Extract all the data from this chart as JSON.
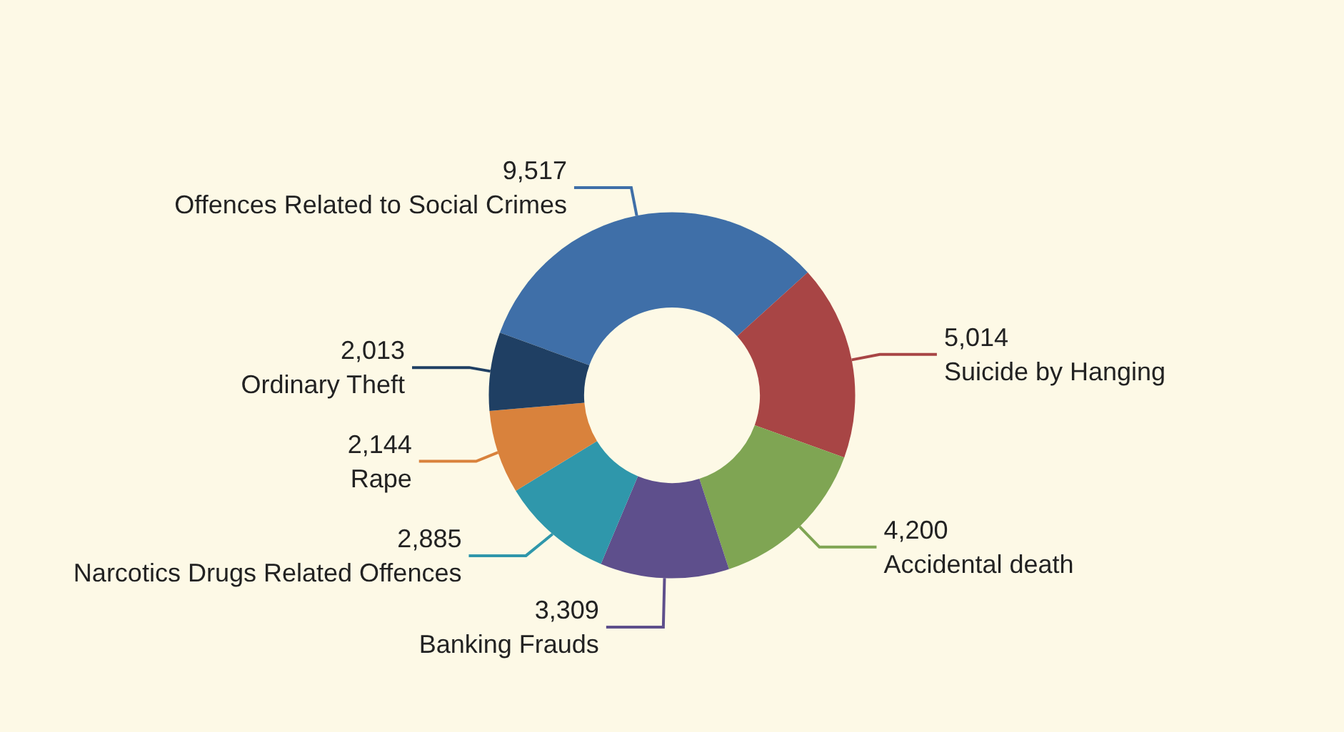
{
  "chart_data": {
    "type": "donut",
    "categories": [
      "Offences Related to Social Crimes",
      "Suicide by Hanging",
      "Accidental death",
      "Banking Frauds",
      "Narcotics Drugs Related Offences",
      "Rape",
      "Ordinary Theft"
    ],
    "values": [
      9517,
      5014,
      4200,
      3309,
      2885,
      2144,
      2013
    ],
    "colors": [
      "#3f6fa8",
      "#a84545",
      "#7fa553",
      "#5e4f8c",
      "#2f97ab",
      "#d9823c",
      "#1f3f63"
    ],
    "value_labels": [
      "9,517",
      "5,014",
      "4,200",
      "3,309",
      "2,885",
      "2,144",
      "2,013"
    ],
    "legend": false
  }
}
